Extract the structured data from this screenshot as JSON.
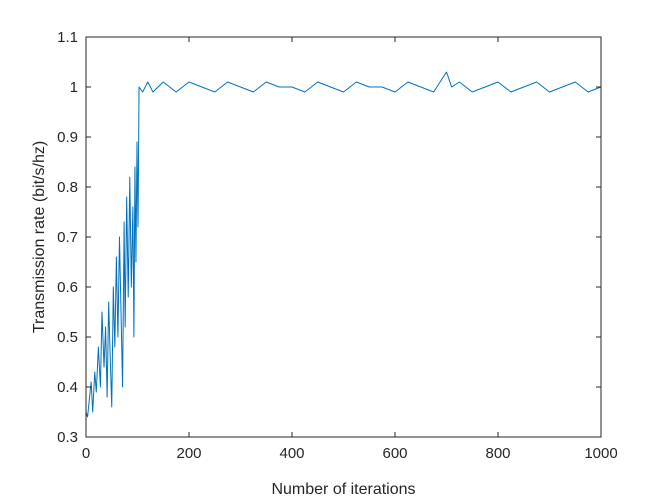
{
  "chart_data": {
    "type": "line",
    "title": "",
    "xlabel": "Number of iterations",
    "ylabel": "Transmission rate (bit/s/hz)",
    "xlim": [
      0,
      1000
    ],
    "ylim": [
      0.3,
      1.1
    ],
    "xticks": [
      0,
      200,
      400,
      600,
      800,
      1000
    ],
    "yticks": [
      0.3,
      0.4,
      0.5,
      0.6,
      0.7,
      0.8,
      0.9,
      1,
      1.1
    ],
    "xtick_labels": [
      "0",
      "200",
      "400",
      "600",
      "800",
      "1000"
    ],
    "ytick_labels": [
      "0.3",
      "0.4",
      "0.5",
      "0.6",
      "0.7",
      "0.8",
      "0.9",
      "1",
      "1.1"
    ],
    "grid": false,
    "legend": "none",
    "colors": {
      "series": "#0072BD",
      "axes": "#262626"
    },
    "series": [
      {
        "x": [
          0,
          3,
          6,
          10,
          13,
          17,
          20,
          24,
          28,
          31,
          35,
          38,
          41,
          44,
          47,
          50,
          53,
          56,
          59,
          62,
          65,
          68,
          71,
          74,
          76,
          79,
          82,
          85,
          88,
          91,
          93,
          95,
          97,
          99,
          101,
          103,
          110,
          120,
          130,
          140,
          150,
          175,
          200,
          225,
          250,
          275,
          300,
          325,
          350,
          375,
          400,
          425,
          450,
          475,
          500,
          525,
          550,
          575,
          600,
          625,
          650,
          675,
          700,
          710,
          725,
          750,
          775,
          800,
          825,
          850,
          875,
          900,
          925,
          950,
          975,
          1000
        ],
        "y": [
          0.35,
          0.34,
          0.37,
          0.41,
          0.35,
          0.43,
          0.39,
          0.48,
          0.4,
          0.55,
          0.44,
          0.52,
          0.38,
          0.57,
          0.46,
          0.36,
          0.6,
          0.48,
          0.66,
          0.5,
          0.7,
          0.55,
          0.4,
          0.73,
          0.52,
          0.78,
          0.58,
          0.82,
          0.6,
          0.76,
          0.5,
          0.84,
          0.65,
          0.89,
          0.72,
          1.0,
          0.99,
          1.01,
          0.99,
          1.0,
          1.01,
          0.99,
          1.01,
          1.0,
          0.99,
          1.01,
          1.0,
          0.99,
          1.01,
          1.0,
          1.0,
          0.99,
          1.01,
          1.0,
          0.99,
          1.01,
          1.0,
          1.0,
          0.99,
          1.01,
          1.0,
          0.99,
          1.03,
          1.0,
          1.01,
          0.99,
          1.0,
          1.01,
          0.99,
          1.0,
          1.01,
          0.99,
          1.0,
          1.01,
          0.99,
          1.0
        ]
      }
    ]
  }
}
